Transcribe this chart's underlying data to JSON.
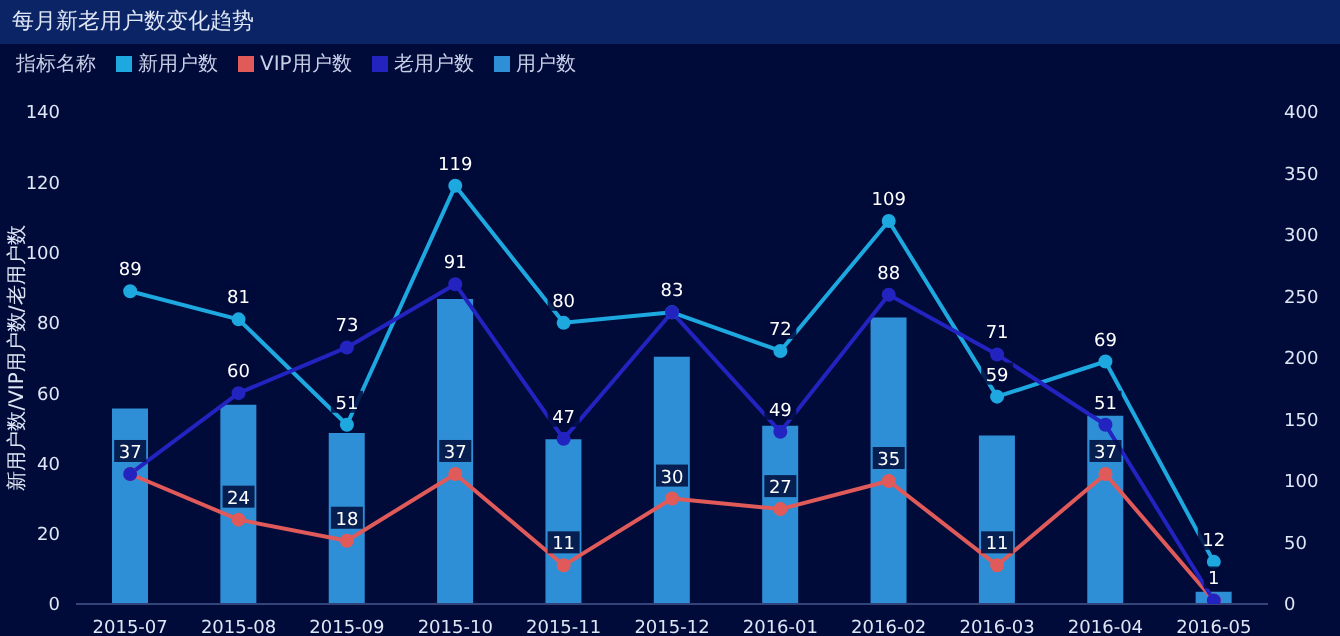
{
  "chart_data": {
    "type": "line",
    "title": "每月新老用户数变化趋势",
    "ylabel": "新用户数/VIP用户数/老用户数",
    "legend_title": "指标名称",
    "legend": "top left",
    "grid": false,
    "marker": "circle",
    "categories": [
      "2015-07",
      "2015-08",
      "2015-09",
      "2015-10",
      "2015-11",
      "2015-12",
      "2016-01",
      "2016-02",
      "2016-03",
      "2016-04",
      "2016-05"
    ],
    "ylim": [
      0,
      140
    ],
    "yticks": [
      0,
      20,
      40,
      60,
      80,
      100,
      120,
      140
    ],
    "y2lim": [
      0,
      400
    ],
    "y2ticks": [
      0,
      50,
      100,
      150,
      200,
      250,
      300,
      350,
      400
    ],
    "series": [
      {
        "name": "新用户数",
        "color": "#1ea8e0",
        "data_labels": true,
        "values": [
          89,
          81,
          51,
          119,
          80,
          83,
          72,
          109,
          59,
          69,
          12
        ]
      },
      {
        "name": "VIP用户数",
        "color": "#e05a5a",
        "data_labels": true,
        "values": [
          37,
          24,
          18,
          37,
          11,
          30,
          27,
          35,
          11,
          37,
          1
        ]
      },
      {
        "name": "老用户数",
        "color": "#2323c0",
        "value_labels": [
          null,
          "60",
          "73",
          "91",
          "47",
          null,
          "49",
          "88",
          "71",
          "51",
          null
        ],
        "values": [
          37,
          60,
          73,
          91,
          47,
          83,
          49,
          88,
          71,
          51,
          1
        ]
      },
      {
        "name": "用户数",
        "type": "bar",
        "axis": "y2",
        "color": "#2e8fd6",
        "values": [
          159,
          162,
          139,
          248,
          134,
          201,
          145,
          233,
          137,
          153,
          10
        ]
      }
    ]
  }
}
